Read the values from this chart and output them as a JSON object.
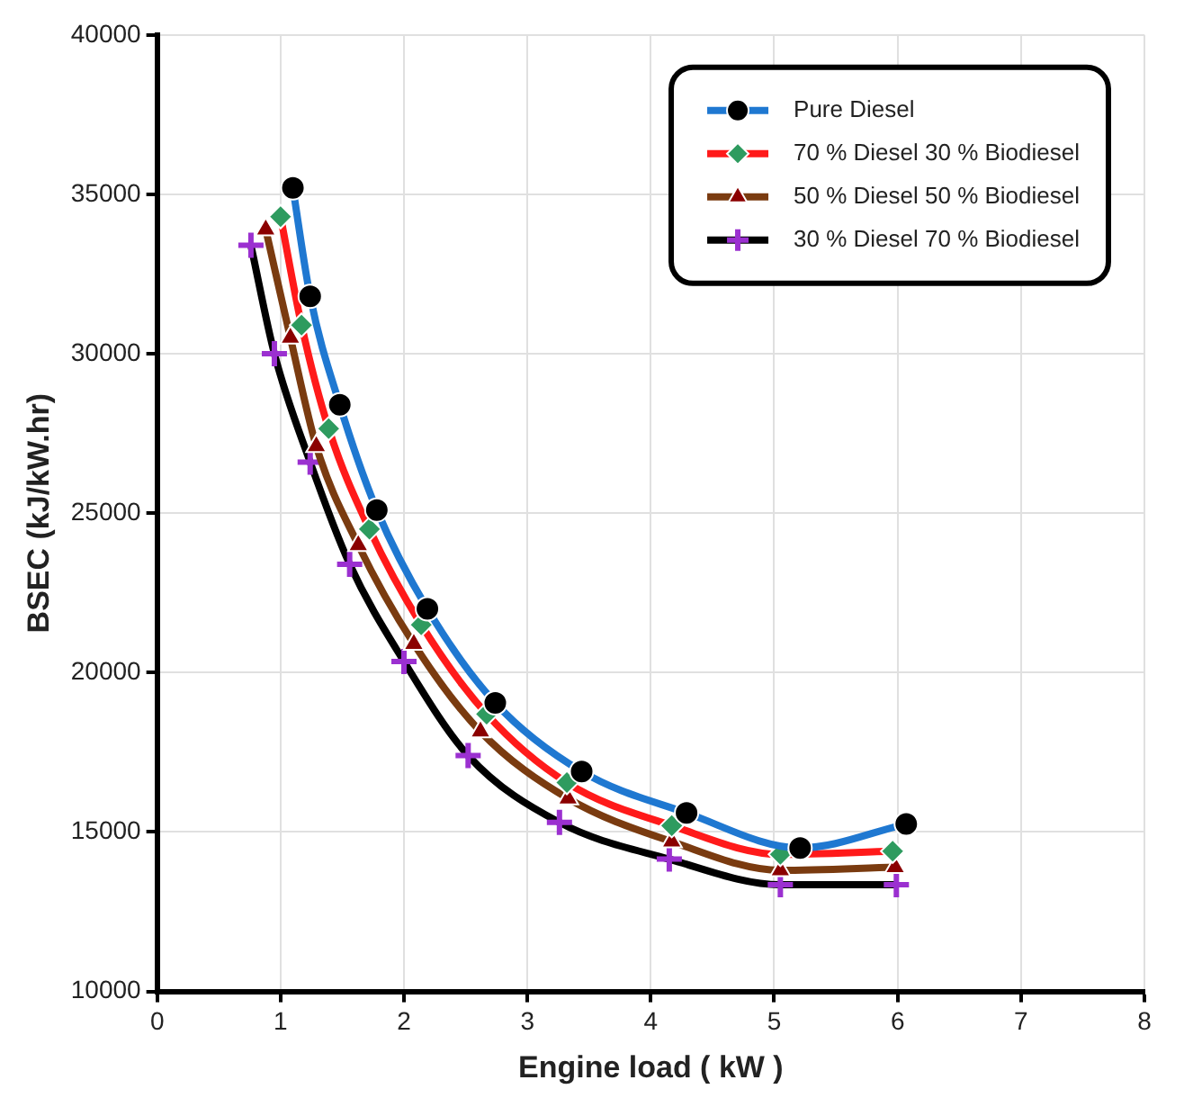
{
  "chart_data": {
    "type": "line",
    "xlabel": "Engine load ( kW )",
    "ylabel": "BSEC (kJ/kW.hr)",
    "xlim": [
      0,
      8
    ],
    "xticks": [
      0,
      1,
      2,
      3,
      4,
      5,
      6,
      7,
      8
    ],
    "ylim": [
      10000,
      40000
    ],
    "yticks": [
      10000,
      15000,
      20000,
      25000,
      30000,
      35000,
      40000
    ],
    "grid": true,
    "legend": "top right",
    "line_style": "solid",
    "series": [
      {
        "name": "Pure Diesel",
        "color": "#1f78d1",
        "marker": "circle",
        "x": [
          1.1,
          1.24,
          1.48,
          1.78,
          2.19,
          2.74,
          3.44,
          4.29,
          5.21,
          6.07
        ],
        "values": [
          35200,
          31800,
          28400,
          25100,
          22000,
          19050,
          16900,
          15600,
          14500,
          15250
        ]
      },
      {
        "name": "70 % Diesel 30 % Biodiesel",
        "color": "#ff1a1a",
        "marker": "diamond",
        "x": [
          1.0,
          1.17,
          1.39,
          1.72,
          2.14,
          2.67,
          3.32,
          4.17,
          5.05,
          5.96
        ],
        "values": [
          34300,
          30900,
          27650,
          24500,
          21500,
          18700,
          16550,
          15200,
          14300,
          14400
        ]
      },
      {
        "name": "50 % Diesel 50 % Biodiesel",
        "color": "#7a3b10",
        "marker": "triangle",
        "x": [
          0.88,
          1.08,
          1.29,
          1.63,
          2.08,
          2.62,
          3.33,
          4.17,
          5.05,
          5.98
        ],
        "values": [
          33900,
          30500,
          27100,
          24000,
          20900,
          18150,
          16050,
          14700,
          13800,
          13900
        ]
      },
      {
        "name": "30 % Diesel 70 % Biodiesel",
        "color": "#000000",
        "marker": "cross",
        "x": [
          0.76,
          0.95,
          1.24,
          1.56,
          2.0,
          2.52,
          3.26,
          4.15,
          5.05,
          5.99
        ],
        "values": [
          33400,
          30000,
          26600,
          23400,
          20350,
          17400,
          15300,
          14150,
          13350,
          13350
        ]
      }
    ]
  }
}
